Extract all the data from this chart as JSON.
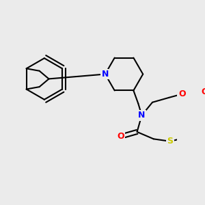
{
  "background_color": "#ebebeb",
  "bond_color": "#000000",
  "N_color": "#0000ff",
  "O_color": "#ff0000",
  "S_color": "#cccc00",
  "line_width": 1.5,
  "figsize": [
    3.0,
    3.0
  ],
  "dpi": 100,
  "xlim": [
    0,
    300
  ],
  "ylim": [
    0,
    300
  ]
}
